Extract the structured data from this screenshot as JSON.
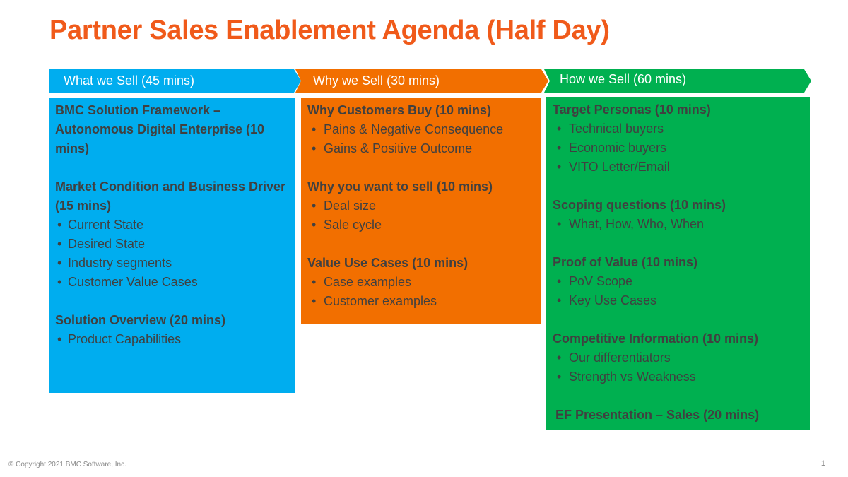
{
  "title": "Partner Sales Enablement Agenda (Half Day)",
  "columns": [
    {
      "header": "What we Sell  (45 mins)",
      "color": "#00adef",
      "sections": [
        {
          "title": "BMC Solution Framework – Autonomous Digital Enterprise (10 mins)",
          "items": []
        },
        {
          "title": "Market Condition and Business Driver (15 mins)",
          "items": [
            "Current State",
            "Desired State",
            "Industry segments",
            "Customer Value Cases"
          ]
        },
        {
          "title": "Solution Overview (20 mins)",
          "items": [
            "Product Capabilities"
          ]
        }
      ]
    },
    {
      "header": "Why we Sell (30 mins)",
      "color": "#f26f00",
      "sections": [
        {
          "title": "Why Customers Buy (10 mins)",
          "items": [
            "Pains & Negative Consequence",
            "Gains & Positive Outcome"
          ]
        },
        {
          "title": "Why you want to sell (10 mins)",
          "items": [
            "Deal size",
            "Sale cycle"
          ]
        },
        {
          "title": "Value Use Cases (10 mins)",
          "items": [
            "Case examples",
            "Customer examples"
          ]
        }
      ]
    },
    {
      "header": "How we Sell (60 mins)",
      "color": "#00b050",
      "sections": [
        {
          "title": "Target Personas (10 mins)",
          "items": [
            "Technical buyers",
            "Economic buyers",
            "VITO Letter/Email"
          ]
        },
        {
          "title": "Scoping questions (10 mins)",
          "items": [
            "What, How, Who, When"
          ]
        },
        {
          "title": "Proof of Value (10 mins)",
          "items": [
            "PoV Scope",
            "Key Use Cases"
          ]
        },
        {
          "title": "Competitive Information (10 mins)",
          "items": [
            "Our differentiators",
            "Strength vs Weakness"
          ]
        }
      ],
      "final_item": "EF Presentation – Sales (20 mins)"
    }
  ],
  "footer": {
    "copyright": "© Copyright 2021 BMC Software, Inc.",
    "page_number": "1"
  }
}
